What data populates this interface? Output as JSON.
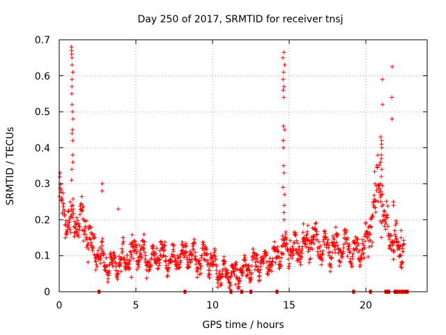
{
  "chart_data": {
    "type": "scatter",
    "title": "Day 250 of 2017, SRMTID for receiver tnsj",
    "xlabel": "GPS time / hours",
    "ylabel": "SRMTID / TECUs",
    "xlim": [
      0,
      24
    ],
    "ylim": [
      0,
      0.7
    ],
    "xticks": [
      "0",
      "5",
      "10",
      "15",
      "20"
    ],
    "xtick_values": [
      0,
      5,
      10,
      15,
      20
    ],
    "yticks": [
      "0",
      "0.1",
      "0.2",
      "0.3",
      "0.4",
      "0.5",
      "0.6",
      "0.7"
    ],
    "ytick_values": [
      0,
      0.1,
      0.2,
      0.3,
      0.4,
      0.5,
      0.6,
      0.7
    ],
    "grid": true,
    "marker": "plus",
    "series_color": "#ff0000",
    "trend": [
      [
        0.0,
        0.25
      ],
      [
        0.3,
        0.22
      ],
      [
        0.6,
        0.19
      ],
      [
        1.0,
        0.2
      ],
      [
        1.3,
        0.19
      ],
      [
        1.6,
        0.19
      ],
      [
        2.0,
        0.14
      ],
      [
        2.5,
        0.11
      ],
      [
        3.0,
        0.08
      ],
      [
        3.5,
        0.07
      ],
      [
        4.0,
        0.08
      ],
      [
        4.5,
        0.1
      ],
      [
        5.0,
        0.12
      ],
      [
        5.5,
        0.1
      ],
      [
        6.0,
        0.08
      ],
      [
        6.5,
        0.11
      ],
      [
        7.0,
        0.09
      ],
      [
        7.5,
        0.09
      ],
      [
        8.0,
        0.1
      ],
      [
        8.5,
        0.1
      ],
      [
        9.0,
        0.09
      ],
      [
        9.5,
        0.1
      ],
      [
        10.0,
        0.08
      ],
      [
        10.5,
        0.05
      ],
      [
        11.0,
        0.05
      ],
      [
        11.5,
        0.05
      ],
      [
        12.0,
        0.06
      ],
      [
        12.5,
        0.07
      ],
      [
        13.0,
        0.08
      ],
      [
        13.5,
        0.08
      ],
      [
        14.0,
        0.09
      ],
      [
        14.5,
        0.11
      ],
      [
        15.0,
        0.12
      ],
      [
        15.5,
        0.11
      ],
      [
        16.0,
        0.13
      ],
      [
        16.5,
        0.14
      ],
      [
        17.0,
        0.13
      ],
      [
        17.5,
        0.12
      ],
      [
        18.0,
        0.12
      ],
      [
        18.5,
        0.13
      ],
      [
        19.0,
        0.12
      ],
      [
        19.5,
        0.11
      ],
      [
        20.0,
        0.13
      ],
      [
        20.3,
        0.18
      ],
      [
        20.6,
        0.26
      ],
      [
        20.9,
        0.3
      ],
      [
        21.2,
        0.2
      ],
      [
        21.5,
        0.16
      ],
      [
        21.8,
        0.14
      ],
      [
        22.0,
        0.12
      ],
      [
        22.3,
        0.12
      ],
      [
        22.5,
        0.12
      ]
    ],
    "spikes": [
      {
        "hour": 0.85,
        "values": [
          0.68,
          0.67,
          0.66,
          0.65,
          0.63,
          0.61,
          0.59,
          0.57,
          0.55,
          0.52,
          0.5,
          0.48,
          0.45,
          0.44,
          0.42,
          0.38,
          0.36,
          0.34,
          0.31
        ]
      },
      {
        "hour": 14.65,
        "values": [
          0.665,
          0.65,
          0.63,
          0.61,
          0.59,
          0.57,
          0.56,
          0.54,
          0.46,
          0.45,
          0.42,
          0.4,
          0.35,
          0.33,
          0.29,
          0.27,
          0.24,
          0.22,
          0.2
        ]
      },
      {
        "hour": 21.0,
        "values": [
          0.43,
          0.42,
          0.41,
          0.4,
          0.38,
          0.37,
          0.36,
          0.34,
          0.32,
          0.3,
          0.27,
          0.25
        ]
      },
      {
        "hour": 21.05,
        "values": [
          0.52,
          0.59
        ]
      },
      {
        "hour": 21.7,
        "values": [
          0.625,
          0.54,
          0.48
        ]
      }
    ],
    "outliers": [
      [
        0.05,
        0.33
      ],
      [
        2.8,
        0.3
      ],
      [
        2.8,
        0.28
      ],
      [
        3.85,
        0.23
      ],
      [
        21.8,
        0.25
      ],
      [
        21.8,
        0.24
      ],
      [
        22.0,
        0.19
      ],
      [
        22.3,
        0.17
      ],
      [
        22.3,
        0.15
      ],
      [
        22.4,
        0.12
      ],
      [
        22.3,
        0.1
      ],
      [
        21.8,
        0.09
      ],
      [
        4.7,
        0.04
      ],
      [
        9.0,
        0.04
      ],
      [
        11.5,
        0.02
      ]
    ],
    "zero_markers": [
      2.6,
      8.2,
      11.2,
      11.9,
      12.5,
      14.2,
      19.2,
      20.3,
      21.3,
      21.4,
      21.5,
      21.9,
      22.0,
      22.2,
      22.4,
      22.6,
      22.7
    ]
  }
}
